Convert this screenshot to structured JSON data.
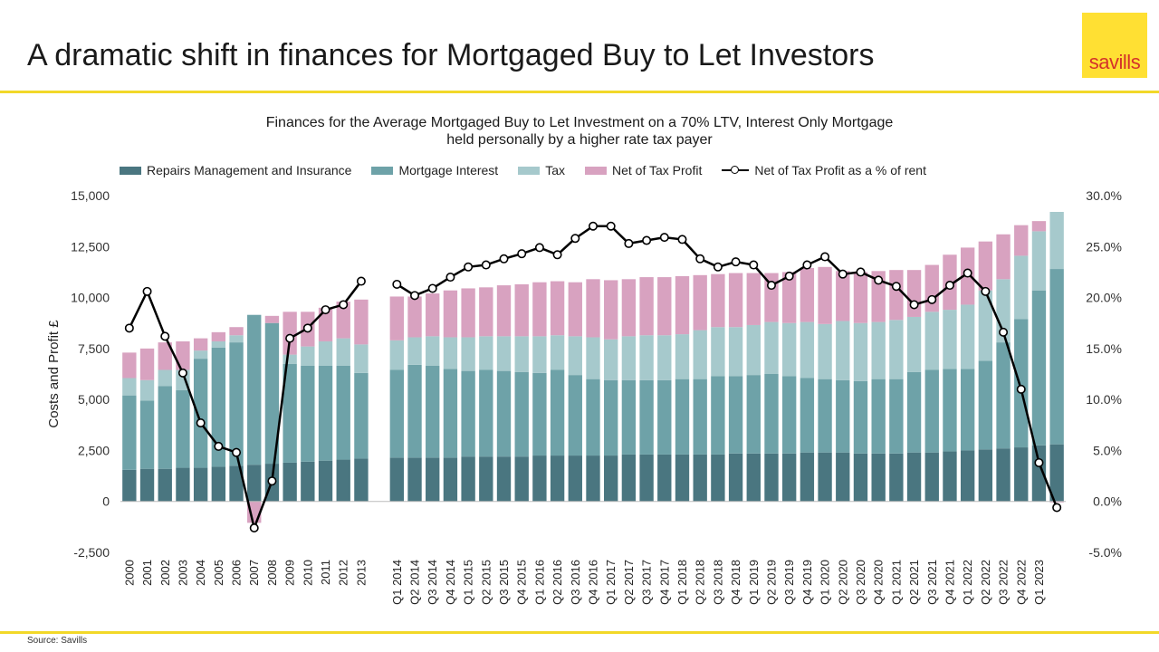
{
  "header": {
    "title": "A dramatic shift in finances for Mortgaged Buy to Let Investors",
    "logo_text": "savills"
  },
  "footer": {
    "source": "Source: Savills"
  },
  "colors": {
    "repairs": "#4a7680",
    "mortgage": "#6ea2a8",
    "tax": "#a6c9cc",
    "profit": "#d8a2c0",
    "line": "#000000",
    "accent": "#f2d829"
  },
  "chart_data": {
    "type": "bar",
    "stacked": true,
    "title_line1": "Finances for the Average Mortgaged Buy to Let Investment on a 70% LTV, Interest Only Mortgage",
    "title_line2": "held personally by a higher rate tax payer",
    "ylabel": "Costs and Profit £",
    "ylim": [
      -2500,
      15000
    ],
    "y2lim": [
      -5,
      30
    ],
    "y_ticks": [
      "-2,500",
      "0",
      "2,500",
      "5,000",
      "7,500",
      "10,000",
      "12,500",
      "15,000"
    ],
    "y2_ticks": [
      "-5.0%",
      "0.0%",
      "5.0%",
      "10.0%",
      "15.0%",
      "20.0%",
      "25.0%",
      "30.0%"
    ],
    "legend": [
      "Repairs Management and Insurance",
      "Mortgage Interest",
      "Tax",
      "Net of Tax Profit",
      "Net of Tax Profit as a % of rent"
    ],
    "annual": {
      "categories": [
        "2000",
        "2001",
        "2002",
        "2003",
        "2004",
        "2005",
        "2006",
        "2007",
        "2008",
        "2009",
        "2010",
        "2011",
        "2012",
        "2013"
      ],
      "repairs": [
        1550,
        1600,
        1600,
        1650,
        1650,
        1700,
        1750,
        1800,
        1850,
        1900,
        1950,
        2000,
        2050,
        2100
      ],
      "mortgage": [
        3650,
        3350,
        4050,
        3800,
        5350,
        5850,
        6050,
        7350,
        6900,
        4850,
        4700,
        4650,
        4600,
        4200
      ],
      "tax": [
        850,
        1000,
        800,
        1000,
        400,
        300,
        350,
        0,
        0,
        450,
        950,
        1200,
        1350,
        1400
      ],
      "profit": [
        1250,
        1550,
        1350,
        1400,
        600,
        450,
        400,
        -1050,
        350,
        2100,
        1700,
        1650,
        1800,
        2200
      ],
      "pct": [
        17.0,
        20.6,
        16.2,
        12.6,
        7.7,
        5.4,
        4.8,
        -2.6,
        2.0,
        16.0,
        17.0,
        18.8,
        19.3,
        21.6
      ]
    },
    "quarterly": {
      "categories": [
        "Q1 2014",
        "Q2 2014",
        "Q3 2014",
        "Q4 2014",
        "Q1 2015",
        "Q2 2015",
        "Q3 2015",
        "Q4 2015",
        "Q1 2016",
        "Q2 2016",
        "Q3 2016",
        "Q4 2016",
        "Q1 2017",
        "Q2 2017",
        "Q3 2017",
        "Q4 2017",
        "Q1 2018",
        "Q2 2018",
        "Q3 2018",
        "Q4 2018",
        "Q1 2019",
        "Q2 2019",
        "Q3 2019",
        "Q4 2019",
        "Q1 2020",
        "Q2 2020",
        "Q3 2020",
        "Q4 2020",
        "Q1 2021",
        "Q2 2021",
        "Q3 2021",
        "Q4 2021",
        "Q1 2022",
        "Q2 2022",
        "Q3 2022",
        "Q4 2022",
        "Q1 2023",
        ""
      ],
      "repairs": [
        2150,
        2150,
        2150,
        2150,
        2200,
        2200,
        2200,
        2200,
        2250,
        2250,
        2250,
        2250,
        2250,
        2300,
        2300,
        2300,
        2300,
        2300,
        2300,
        2350,
        2350,
        2350,
        2350,
        2400,
        2400,
        2400,
        2350,
        2350,
        2350,
        2400,
        2400,
        2450,
        2500,
        2550,
        2600,
        2650,
        2750,
        2800
      ],
      "mortgage": [
        4300,
        4550,
        4500,
        4350,
        4200,
        4250,
        4200,
        4150,
        4050,
        4200,
        3950,
        3750,
        3700,
        3650,
        3650,
        3650,
        3700,
        3700,
        3850,
        3800,
        3850,
        3900,
        3800,
        3650,
        3600,
        3550,
        3550,
        3650,
        3650,
        3950,
        4050,
        4050,
        4000,
        4350,
        5200,
        6300,
        7600,
        8600
      ],
      "tax": [
        1450,
        1350,
        1450,
        1550,
        1650,
        1650,
        1700,
        1750,
        1800,
        1700,
        1900,
        2050,
        2000,
        2150,
        2200,
        2200,
        2200,
        2400,
        2400,
        2400,
        2450,
        2550,
        2600,
        2750,
        2700,
        2900,
        2850,
        2800,
        2900,
        2700,
        2850,
        2900,
        3150,
        3450,
        3100,
        3100,
        2900,
        2800
      ],
      "profit": [
        2150,
        2000,
        2100,
        2300,
        2400,
        2400,
        2500,
        2550,
        2650,
        2650,
        2650,
        2850,
        2900,
        2800,
        2850,
        2850,
        2850,
        2700,
        2600,
        2650,
        2550,
        2400,
        2500,
        2650,
        2800,
        2450,
        2500,
        2500,
        2450,
        2300,
        2300,
        2700,
        2800,
        2400,
        2200,
        1500,
        500,
        -50
      ],
      "pct": [
        21.3,
        20.2,
        20.9,
        22.0,
        23.0,
        23.2,
        23.8,
        24.3,
        24.9,
        24.2,
        25.8,
        27.0,
        27.0,
        25.3,
        25.6,
        25.9,
        25.7,
        23.8,
        23.0,
        23.5,
        23.2,
        21.2,
        22.1,
        23.2,
        24.0,
        22.3,
        22.5,
        21.7,
        21.1,
        19.3,
        19.8,
        21.2,
        22.4,
        20.6,
        16.6,
        11.0,
        3.8,
        -0.6
      ]
    }
  }
}
